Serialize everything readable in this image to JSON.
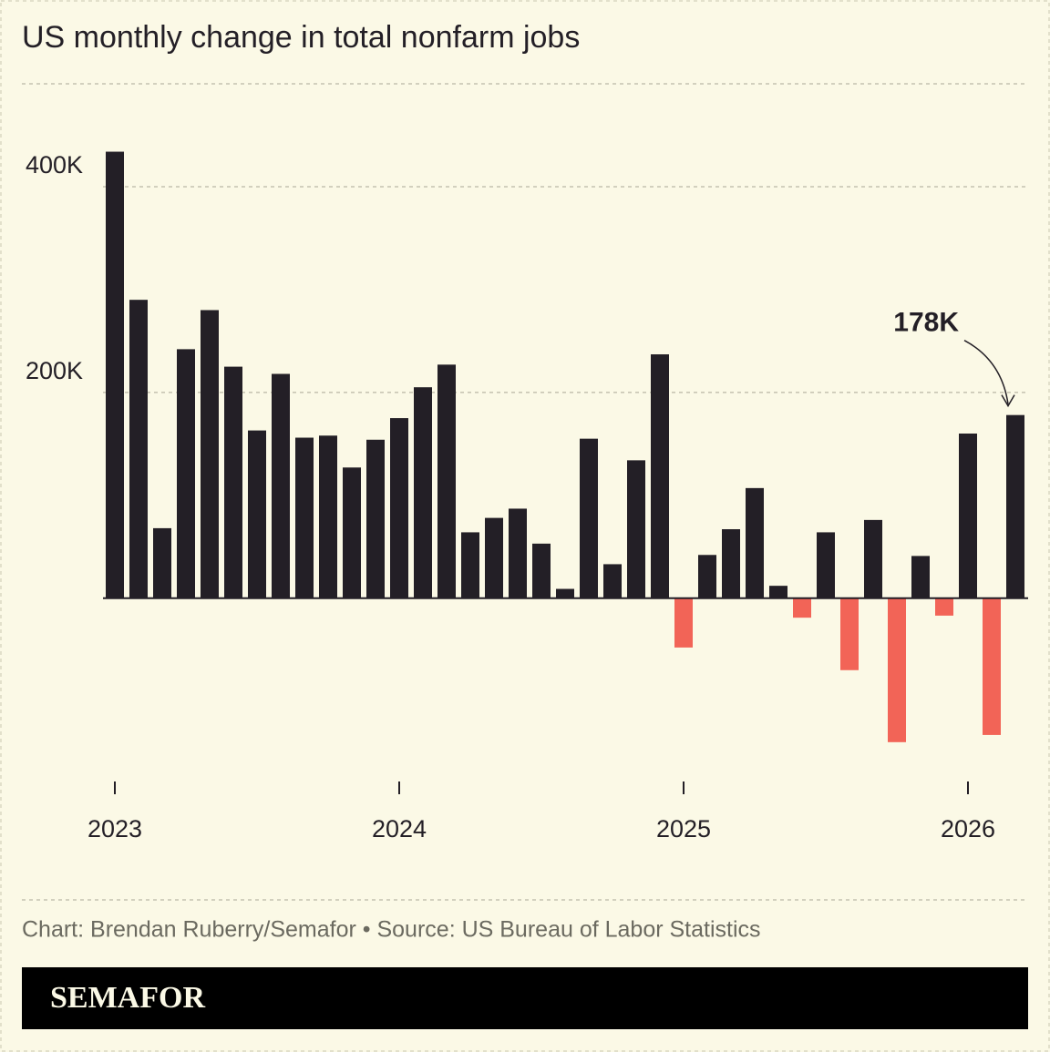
{
  "chart_data": {
    "type": "bar",
    "title": "US monthly change in total nonfarm jobs",
    "categories": [
      "2023",
      null,
      null,
      null,
      null,
      null,
      null,
      null,
      null,
      null,
      null,
      null,
      "2024",
      null,
      null,
      null,
      null,
      null,
      null,
      null,
      null,
      null,
      null,
      null,
      "2025",
      null,
      null,
      null,
      null,
      null,
      null,
      null,
      null,
      null,
      null,
      null,
      "2026",
      null,
      null
    ],
    "series": [
      {
        "color": "#231f26",
        "negative_color": "#f26457",
        "values": [
          434000,
          290000,
          68000,
          242000,
          280000,
          225000,
          163000,
          218000,
          156000,
          158000,
          127000,
          154000,
          175000,
          205000,
          227000,
          64000,
          78000,
          87000,
          53000,
          9000,
          155000,
          33000,
          134000,
          237000,
          -48000,
          42000,
          67000,
          107000,
          12000,
          -19000,
          64000,
          -70000,
          76000,
          -140000,
          41000,
          -17000,
          160000,
          -133000,
          178000
        ]
      }
    ],
    "annotation": "178K",
    "ylim": [
      -180000,
      500000
    ],
    "yticks": [
      {
        "value": 200000,
        "label": "200K"
      },
      {
        "value": 400000,
        "label": "400K"
      }
    ],
    "grid": true,
    "source": "Chart: Brendan Ruberry/Semafor • Source: US Bureau of Labor Statistics",
    "brand": "SEMAFOR"
  }
}
